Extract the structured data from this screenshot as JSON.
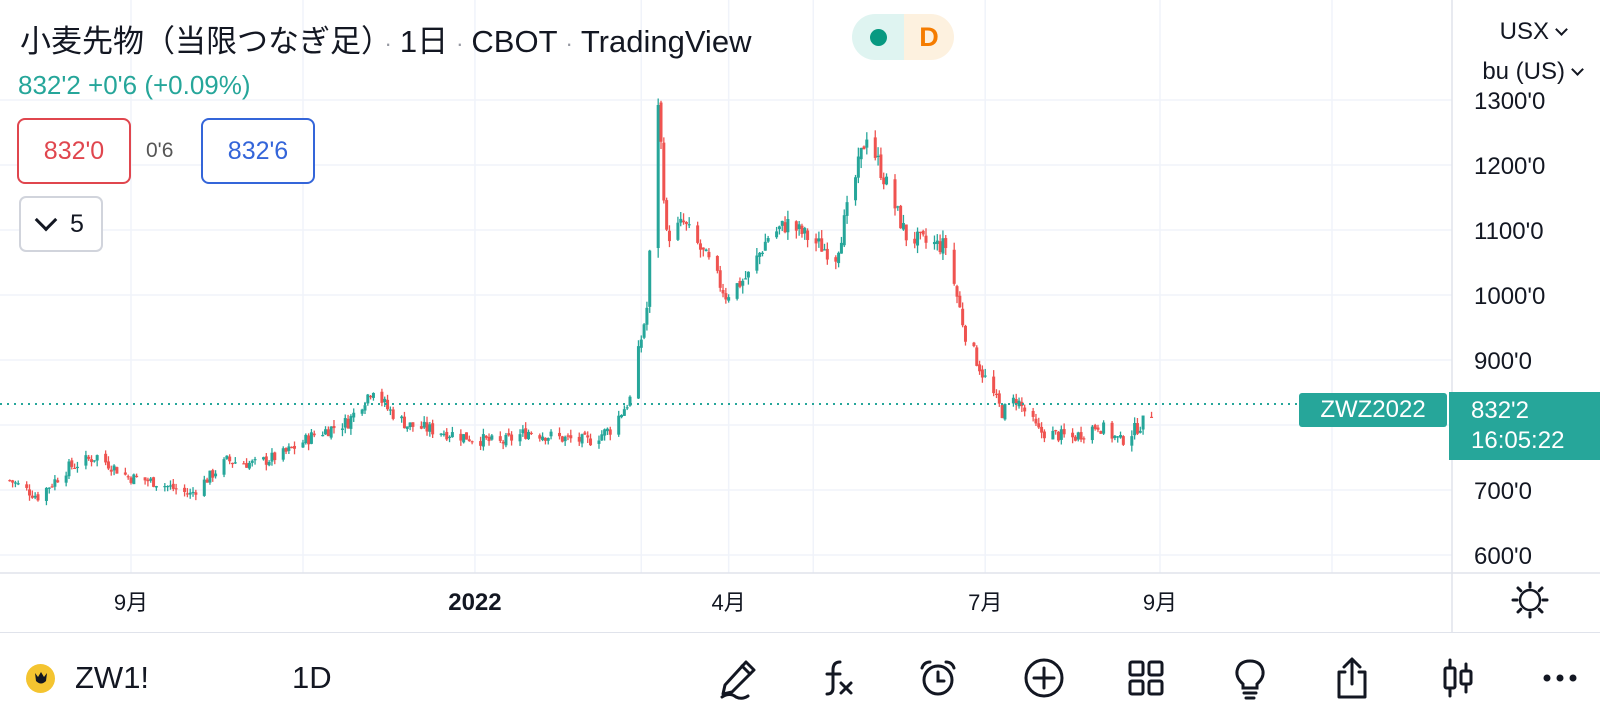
{
  "header": {
    "name": "小麦先物（当限つなぎ足）",
    "interval": "1日",
    "exchange": "CBOT",
    "source": "TradingView",
    "status_letter": "D",
    "separator": "·"
  },
  "quote": {
    "change_line": "832'2  +0'6 (+0.09%)",
    "bid": "832'0",
    "spread": "0'6",
    "ask": "832'6",
    "indicators_count": "5"
  },
  "axis": {
    "currency": "USX",
    "unit": "bu (US)",
    "price_labels": [
      "1300'0",
      "1200'0",
      "1100'0",
      "1000'0",
      "900'0",
      "700'0",
      "600'0"
    ],
    "time_labels": [
      "9月",
      "2022",
      "4月",
      "7月",
      "9月"
    ]
  },
  "last": {
    "symbol": "ZWZ2022",
    "price": "832'2",
    "countdown": "16:05:22"
  },
  "toolbar": {
    "symbol": "ZW1!",
    "interval": "1D"
  },
  "colors": {
    "up": "#26a69a",
    "down": "#ef5350",
    "accent": "#26a69a",
    "status_market": "#089981",
    "status_delay": "#f57c00"
  },
  "chart_data": {
    "type": "candlestick",
    "y_range": [
      600,
      1350
    ],
    "close_anchors": [
      [
        "2021-07-20",
        715
      ],
      [
        "2021-07-30",
        690
      ],
      [
        "2021-08-10",
        735
      ],
      [
        "2021-08-20",
        752
      ],
      [
        "2021-08-31",
        720
      ],
      [
        "2021-09-10",
        712
      ],
      [
        "2021-09-22",
        693
      ],
      [
        "2021-10-05",
        745
      ],
      [
        "2021-10-15",
        740
      ],
      [
        "2021-10-25",
        755
      ],
      [
        "2021-11-05",
        785
      ],
      [
        "2021-11-17",
        805
      ],
      [
        "2021-11-26",
        858
      ],
      [
        "2021-12-01",
        825
      ],
      [
        "2021-12-08",
        800
      ],
      [
        "2021-12-20",
        790
      ],
      [
        "2021-12-31",
        780
      ],
      [
        "2022-01-10",
        772
      ],
      [
        "2022-01-20",
        790
      ],
      [
        "2022-01-31",
        780
      ],
      [
        "2022-02-10",
        775
      ],
      [
        "2022-02-18",
        793
      ],
      [
        "2022-02-25",
        840
      ],
      [
        "2022-03-03",
        980
      ],
      [
        "2022-03-07",
        1300
      ],
      [
        "2022-03-10",
        1090
      ],
      [
        "2022-03-16",
        1110
      ],
      [
        "2022-03-25",
        1050
      ],
      [
        "2022-03-31",
        1000
      ],
      [
        "2022-04-08",
        1030
      ],
      [
        "2022-04-15",
        1090
      ],
      [
        "2022-04-22",
        1110
      ],
      [
        "2022-05-02",
        1080
      ],
      [
        "2022-05-09",
        1060
      ],
      [
        "2022-05-16",
        1180
      ],
      [
        "2022-05-20",
        1250
      ],
      [
        "2022-05-27",
        1170
      ],
      [
        "2022-06-03",
        1090
      ],
      [
        "2022-06-10",
        1080
      ],
      [
        "2022-06-17",
        1075
      ],
      [
        "2022-06-24",
        940
      ],
      [
        "2022-06-30",
        880
      ],
      [
        "2022-07-07",
        820
      ],
      [
        "2022-07-12",
        840
      ],
      [
        "2022-07-20",
        790
      ],
      [
        "2022-08-01",
        780
      ],
      [
        "2022-08-10",
        800
      ],
      [
        "2022-08-18",
        775
      ],
      [
        "2022-08-25",
        800
      ],
      [
        "2022-09-01",
        832
      ]
    ],
    "last_price": 832.25
  }
}
